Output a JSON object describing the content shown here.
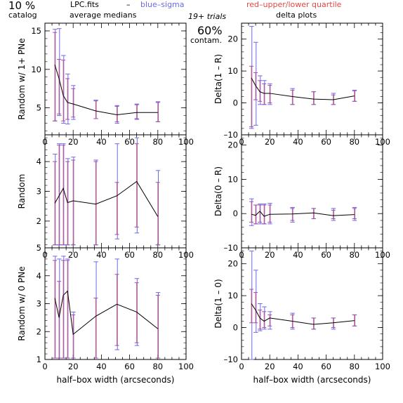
{
  "header": {
    "pct_left": "10 %",
    "catalog": "catalog",
    "lpc": "LPC.fits",
    "dash": "–",
    "blue_sigma": "blue–sigma",
    "red_quartile": "red–upper/lower quartile",
    "avg_medians": "average medians",
    "trials": "19+ trials",
    "pct_mid": "60%",
    "contam": "contam.",
    "delta_plots": "delta plots"
  },
  "colors": {
    "blue": "#6a6ae8",
    "red": "#e04848",
    "purple": "#9a50b0",
    "line": "#000000"
  },
  "chart_data": [
    {
      "id": "p1",
      "type": "line",
      "ylabel": "Random w/ 1+ PNe",
      "xlabel": "",
      "xlim": [
        0,
        100
      ],
      "ylim": [
        1.5,
        16
      ],
      "xticks": [
        "0",
        "20",
        "40",
        "60",
        "80",
        "100"
      ],
      "yticks": [
        {
          "v": 5,
          "label": "5"
        },
        {
          "v": 10,
          "label": "10"
        },
        {
          "v": 15,
          "label": "15"
        }
      ],
      "x": [
        7,
        10,
        13,
        16,
        20,
        36,
        51,
        65,
        80
      ],
      "y": [
        10.6,
        8.8,
        6.6,
        5.7,
        5.5,
        4.6,
        4.1,
        4.4,
        4.4
      ],
      "q_lo": [
        3.3,
        4.2,
        3.3,
        3.5,
        3.8,
        3.6,
        3.2,
        3.6,
        3.2
      ],
      "q_hi": [
        14.8,
        11.3,
        11.2,
        8.8,
        7.5,
        5.9,
        5.2,
        5.4,
        5.7
      ],
      "s_lo": [
        3.3,
        4.0,
        3.0,
        2.9,
        3.5,
        3.6,
        3.0,
        3.5,
        3.2
      ],
      "s_hi": [
        15.2,
        15.3,
        11.8,
        9.4,
        7.9,
        6.0,
        5.3,
        5.5,
        5.8
      ]
    },
    {
      "id": "p2",
      "type": "line",
      "ylabel": "Random",
      "xlabel": "",
      "xlim": [
        0,
        100
      ],
      "ylim": [
        1.1,
        4.9
      ],
      "xticks": [
        "0",
        "20",
        "40",
        "60",
        "80",
        "100"
      ],
      "yticks": [
        {
          "v": 2,
          "label": "2"
        },
        {
          "v": 3,
          "label": "3"
        },
        {
          "v": 4,
          "label": "4"
        }
      ],
      "x": [
        7,
        10,
        13,
        16,
        20,
        36,
        51,
        65,
        80
      ],
      "y": [
        2.6,
        2.85,
        3.1,
        2.62,
        2.68,
        2.57,
        2.85,
        3.33,
        2.15
      ],
      "q_lo": [
        1.2,
        1.2,
        1.2,
        1.2,
        1.2,
        1.2,
        1.55,
        1.8,
        1.2
      ],
      "q_hi": [
        4.0,
        4.55,
        4.55,
        4.0,
        4.05,
        4.0,
        3.3,
        4.6,
        3.3
      ],
      "s_lo": [
        1.2,
        1.2,
        1.2,
        1.2,
        1.2,
        1.2,
        1.4,
        1.6,
        1.2
      ],
      "s_hi": [
        4.25,
        4.6,
        4.6,
        4.1,
        4.15,
        4.05,
        4.6,
        4.8,
        3.7
      ]
    },
    {
      "id": "p3",
      "type": "line",
      "ylabel": "Random w/ 0 PNe",
      "xlabel": "half–box width (arcseconds)",
      "xlim": [
        0,
        100
      ],
      "ylim": [
        1,
        5
      ],
      "xticks": [
        "0",
        "20",
        "40",
        "60",
        "80",
        "100"
      ],
      "yticks": [
        {
          "v": 1,
          "label": "1"
        },
        {
          "v": 2,
          "label": "2"
        },
        {
          "v": 3,
          "label": "3"
        },
        {
          "v": 4,
          "label": "4"
        },
        {
          "v": 5,
          "label": "5"
        }
      ],
      "x": [
        7,
        10,
        13,
        16,
        20,
        36,
        51,
        65,
        80
      ],
      "y": [
        3.2,
        2.5,
        3.3,
        3.45,
        1.9,
        2.55,
        2.98,
        2.7,
        2.1
      ],
      "q_lo": [
        1.05,
        1.05,
        1.05,
        1.05,
        1.05,
        1.05,
        1.5,
        1.6,
        1.05
      ],
      "q_hi": [
        4.55,
        3.8,
        4.55,
        4.55,
        2.6,
        3.2,
        4.05,
        3.75,
        3.3
      ],
      "s_lo": [
        1.05,
        1.05,
        1.05,
        1.05,
        1.05,
        1.05,
        1.35,
        1.5,
        1.05
      ],
      "s_hi": [
        4.7,
        4.6,
        4.7,
        4.6,
        2.7,
        4.5,
        4.6,
        3.9,
        3.4
      ]
    },
    {
      "id": "p4",
      "type": "line",
      "ylabel": "Delta(1 – R)",
      "xlabel": "",
      "xlim": [
        0,
        100
      ],
      "ylim": [
        -10,
        25
      ],
      "xticks": [
        "0",
        "20",
        "40",
        "60",
        "80",
        "100"
      ],
      "yticks": [
        {
          "v": -10,
          "label": "–10"
        },
        {
          "v": 0,
          "label": "0"
        },
        {
          "v": 10,
          "label": "10"
        },
        {
          "v": 20,
          "label": "20"
        }
      ],
      "x": [
        7,
        10,
        13,
        16,
        20,
        36,
        51,
        65,
        80
      ],
      "y": [
        7.8,
        5.4,
        3.5,
        3.0,
        3.0,
        2.0,
        1.2,
        1.0,
        2.2
      ],
      "q_lo": [
        -7.5,
        1.0,
        0.5,
        -0.5,
        0.0,
        -0.5,
        -0.5,
        -0.5,
        0.5
      ],
      "q_hi": [
        11.5,
        9.5,
        7.0,
        6.0,
        5.5,
        4.0,
        3.5,
        2.5,
        3.8
      ],
      "s_lo": [
        -8.0,
        -7.0,
        -0.5,
        -0.5,
        -0.5,
        -0.5,
        -0.5,
        -0.5,
        0.5
      ],
      "s_hi": [
        24.0,
        19.0,
        8.5,
        7.0,
        6.0,
        4.5,
        3.5,
        3.0,
        4.0
      ]
    },
    {
      "id": "p5",
      "type": "line",
      "ylabel": "Delta(0 – R)",
      "xlabel": "",
      "xlim": [
        0,
        100
      ],
      "ylim": [
        -10,
        23
      ],
      "xticks": [
        "0",
        "20",
        "40",
        "60",
        "80",
        "100"
      ],
      "yticks": [
        {
          "v": -10,
          "label": "–10"
        },
        {
          "v": 0,
          "label": "0"
        },
        {
          "v": 10,
          "label": "10"
        },
        {
          "v": 20,
          "label": "20"
        }
      ],
      "x": [
        7,
        10,
        13,
        16,
        20,
        36,
        51,
        65,
        80
      ],
      "y": [
        -0.2,
        -0.5,
        0.7,
        -0.8,
        -0.2,
        -0.1,
        0.2,
        -0.6,
        -0.3
      ],
      "q_lo": [
        -2.5,
        -3.0,
        -2.5,
        -3.0,
        -2.5,
        -2.0,
        -1.5,
        -1.5,
        -1.5
      ],
      "q_hi": [
        3.5,
        2.5,
        2.5,
        2.5,
        2.5,
        1.5,
        1.5,
        1.0,
        1.5
      ],
      "s_lo": [
        -3.5,
        -3.0,
        -3.0,
        -3.0,
        -3.0,
        -2.5,
        -1.5,
        -2.0,
        -2.0
      ],
      "s_hi": [
        4.3,
        2.5,
        2.8,
        2.8,
        3.0,
        1.8,
        1.5,
        1.5,
        1.8
      ]
    },
    {
      "id": "p6",
      "type": "line",
      "ylabel": "Delta(1 – 0)",
      "xlabel": "half–box width (arcseconds)",
      "xlim": [
        0,
        100
      ],
      "ylim": [
        -10,
        25
      ],
      "xticks": [
        "0",
        "20",
        "40",
        "60",
        "80",
        "100"
      ],
      "yticks": [
        {
          "v": -10,
          "label": "–10"
        },
        {
          "v": 0,
          "label": "0"
        },
        {
          "v": 10,
          "label": "10"
        },
        {
          "v": 20,
          "label": "20"
        }
      ],
      "x": [
        7,
        10,
        13,
        16,
        20,
        36,
        51,
        65,
        80
      ],
      "y": [
        7.5,
        5.5,
        3.0,
        2.0,
        3.0,
        2.0,
        1.0,
        1.5,
        2.2
      ],
      "q_lo": [
        1.5,
        1.5,
        -0.5,
        0.0,
        0.5,
        0.0,
        -0.5,
        0.0,
        0.5
      ],
      "q_hi": [
        12.0,
        11.0,
        5.5,
        5.0,
        4.0,
        4.0,
        3.0,
        3.0,
        4.0
      ],
      "s_lo": [
        -10.0,
        -1.5,
        -1.0,
        -0.5,
        -0.5,
        -0.5,
        -0.5,
        -0.5,
        0.5
      ],
      "s_hi": [
        24.0,
        18.0,
        7.5,
        6.5,
        5.0,
        4.5,
        3.0,
        3.0,
        4.0
      ]
    }
  ]
}
